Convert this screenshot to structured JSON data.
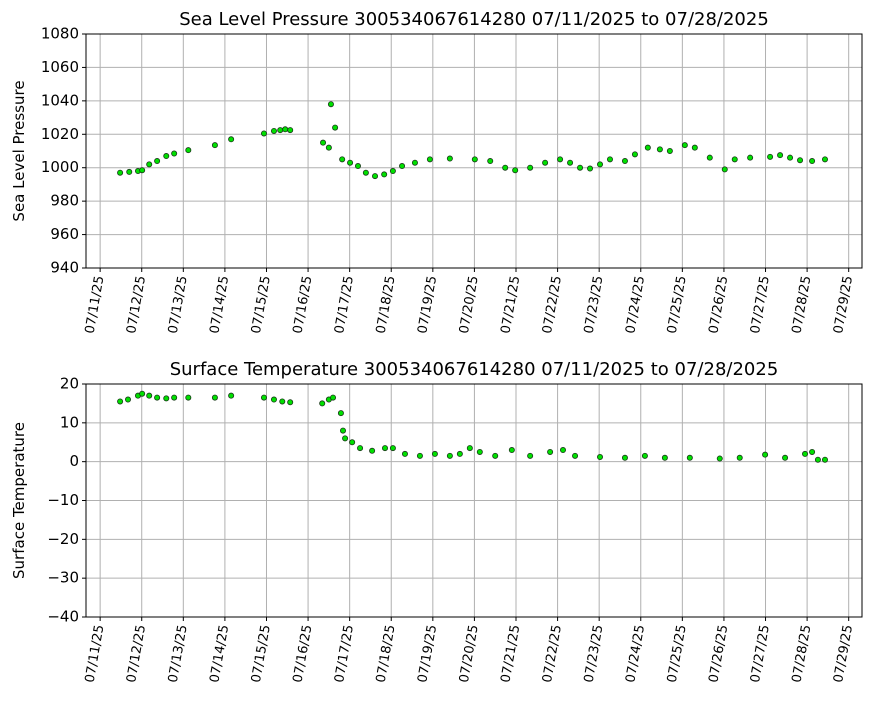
{
  "chart_data": [
    {
      "type": "scatter",
      "title": "Sea Level Pressure 300534067614280  07/11/2025 to 07/28/2025",
      "ylabel": "Sea Level Pressure",
      "color": "#00e000",
      "edgecolor": "#1a3a1a",
      "grid": true,
      "xlim": [
        10.66,
        29.32
      ],
      "ylim": [
        940,
        1080
      ],
      "xticks": [
        {
          "value": 11,
          "label": "07/11/25"
        },
        {
          "value": 12,
          "label": "07/12/25"
        },
        {
          "value": 13,
          "label": "07/13/25"
        },
        {
          "value": 14,
          "label": "07/14/25"
        },
        {
          "value": 15,
          "label": "07/15/25"
        },
        {
          "value": 16,
          "label": "07/16/25"
        },
        {
          "value": 17,
          "label": "07/17/25"
        },
        {
          "value": 18,
          "label": "07/18/25"
        },
        {
          "value": 19,
          "label": "07/19/25"
        },
        {
          "value": 20,
          "label": "07/20/25"
        },
        {
          "value": 21,
          "label": "07/21/25"
        },
        {
          "value": 22,
          "label": "07/22/25"
        },
        {
          "value": 23,
          "label": "07/23/25"
        },
        {
          "value": 24,
          "label": "07/24/25"
        },
        {
          "value": 25,
          "label": "07/25/25"
        },
        {
          "value": 26,
          "label": "07/26/25"
        },
        {
          "value": 27,
          "label": "07/27/25"
        },
        {
          "value": 28,
          "label": "07/28/25"
        },
        {
          "value": 29,
          "label": "07/29/25"
        }
      ],
      "yticks": [
        940,
        960,
        980,
        1000,
        1020,
        1040,
        1060,
        1080
      ],
      "x": [
        11.48,
        11.7,
        11.91,
        12.01,
        12.18,
        12.37,
        12.59,
        12.78,
        13.12,
        13.76,
        14.15,
        14.94,
        15.18,
        15.33,
        15.45,
        15.57,
        16.36,
        16.5,
        16.55,
        16.65,
        16.82,
        17.01,
        17.2,
        17.39,
        17.61,
        17.83,
        18.04,
        18.26,
        18.57,
        18.93,
        19.41,
        20.01,
        20.38,
        20.74,
        20.98,
        21.34,
        21.7,
        22.06,
        22.3,
        22.54,
        22.78,
        23.02,
        23.26,
        23.62,
        23.86,
        24.17,
        24.46,
        24.7,
        25.06,
        25.3,
        25.66,
        26.02,
        26.26,
        26.63,
        27.11,
        27.35,
        27.59,
        27.83,
        28.12,
        28.43
      ],
      "values": [
        997,
        997.5,
        998,
        998.5,
        1002,
        1004,
        1007,
        1008.5,
        1010.5,
        1013.5,
        1017,
        1020.5,
        1022,
        1022.5,
        1023,
        1022.5,
        1015,
        1012,
        1038,
        1024,
        1005,
        1003,
        1001,
        997,
        995,
        996,
        998,
        1001,
        1003,
        1005,
        1005.5,
        1005,
        1004,
        1000,
        998.5,
        1000,
        1003,
        1005,
        1003,
        1000,
        999.5,
        1002,
        1005,
        1004,
        1008,
        1012,
        1011,
        1010,
        1013.5,
        1012,
        1006,
        999,
        1005,
        1006,
        1006.5,
        1007.5,
        1006,
        1004.5,
        1004,
        1005
      ]
    },
    {
      "type": "scatter",
      "title": "Surface Temperature 300534067614280  07/11/2025 to 07/28/2025",
      "ylabel": "Surface Temperature",
      "color": "#00e000",
      "edgecolor": "#1a3a1a",
      "grid": true,
      "xlim": [
        10.66,
        29.32
      ],
      "ylim": [
        -40,
        20
      ],
      "xticks": [
        {
          "value": 11,
          "label": "07/11/25"
        },
        {
          "value": 12,
          "label": "07/12/25"
        },
        {
          "value": 13,
          "label": "07/13/25"
        },
        {
          "value": 14,
          "label": "07/14/25"
        },
        {
          "value": 15,
          "label": "07/15/25"
        },
        {
          "value": 16,
          "label": "07/16/25"
        },
        {
          "value": 17,
          "label": "07/17/25"
        },
        {
          "value": 18,
          "label": "07/18/25"
        },
        {
          "value": 19,
          "label": "07/19/25"
        },
        {
          "value": 20,
          "label": "07/20/25"
        },
        {
          "value": 21,
          "label": "07/21/25"
        },
        {
          "value": 22,
          "label": "07/22/25"
        },
        {
          "value": 23,
          "label": "07/23/25"
        },
        {
          "value": 24,
          "label": "07/24/25"
        },
        {
          "value": 25,
          "label": "07/25/25"
        },
        {
          "value": 26,
          "label": "07/26/25"
        },
        {
          "value": 27,
          "label": "07/27/25"
        },
        {
          "value": 28,
          "label": "07/28/25"
        },
        {
          "value": 29,
          "label": "07/29/25"
        }
      ],
      "yticks": [
        {
          "value": -40,
          "label": "−40"
        },
        {
          "value": -30,
          "label": "−30"
        },
        {
          "value": -20,
          "label": "−20"
        },
        {
          "value": -10,
          "label": "−10"
        },
        0,
        10,
        20
      ],
      "x": [
        11.48,
        11.67,
        11.91,
        12.01,
        12.18,
        12.37,
        12.59,
        12.78,
        13.12,
        13.76,
        14.15,
        14.94,
        15.18,
        15.38,
        15.57,
        16.34,
        16.5,
        16.6,
        16.79,
        16.84,
        16.89,
        17.06,
        17.25,
        17.54,
        17.85,
        18.04,
        18.33,
        18.69,
        19.05,
        19.41,
        19.65,
        19.89,
        20.13,
        20.5,
        20.9,
        21.34,
        21.82,
        22.13,
        22.42,
        23.02,
        23.62,
        24.1,
        24.58,
        25.18,
        25.9,
        26.38,
        26.99,
        27.47,
        27.95,
        28.12,
        28.26,
        28.43
      ],
      "values": [
        15.5,
        16,
        17,
        17.5,
        17,
        16.5,
        16.3,
        16.5,
        16.5,
        16.5,
        17,
        16.5,
        16,
        15.5,
        15.3,
        15,
        16,
        16.5,
        12.5,
        8,
        6,
        5,
        3.5,
        2.8,
        3.5,
        3.5,
        2,
        1.5,
        2,
        1.5,
        2,
        3.5,
        2.5,
        1.5,
        3,
        1.5,
        2.5,
        3,
        1.5,
        1.2,
        1,
        1.5,
        1,
        1,
        0.8,
        1,
        1.8,
        1,
        2,
        2.5,
        0.5,
        0.5
      ]
    }
  ]
}
